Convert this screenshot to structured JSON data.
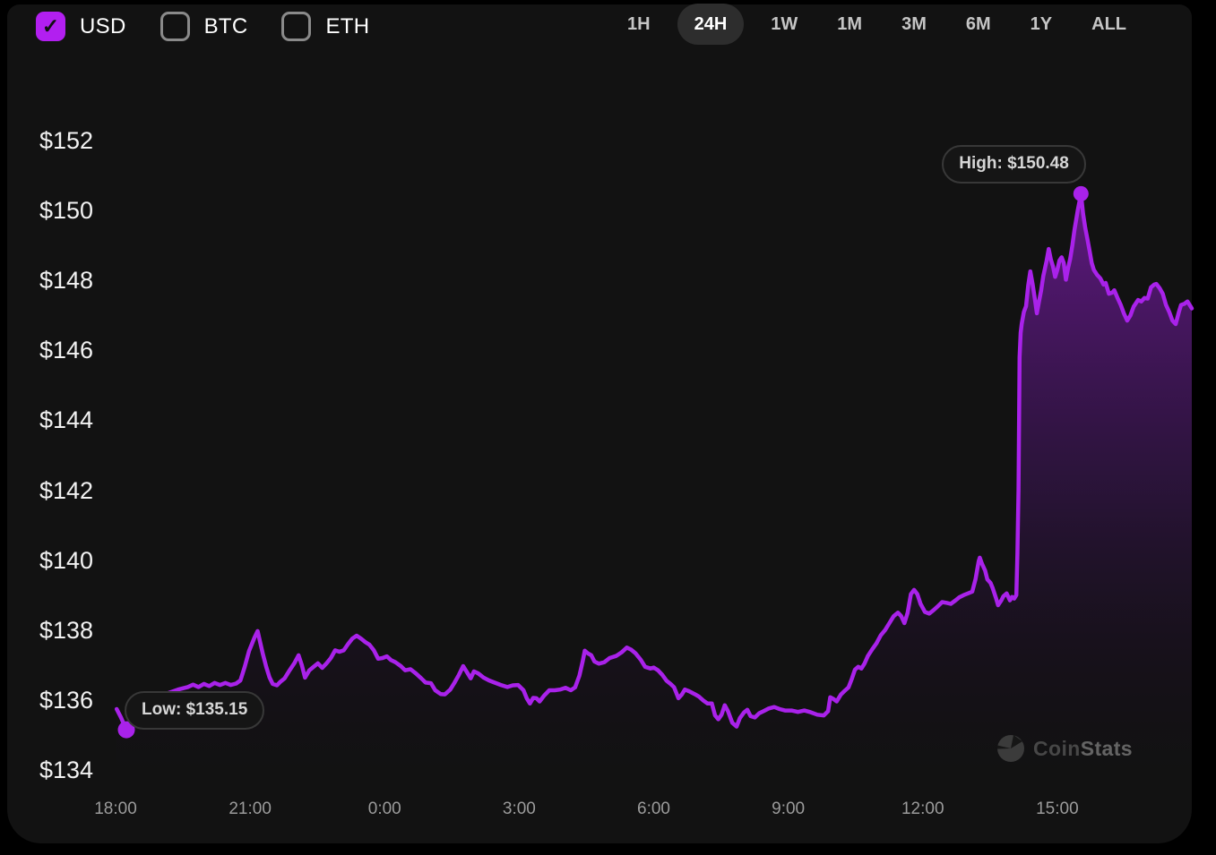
{
  "header": {
    "check_glyph": "✓",
    "currency_toggles": [
      {
        "label": "USD",
        "checked": true
      },
      {
        "label": "BTC",
        "checked": false
      },
      {
        "label": "ETH",
        "checked": false
      }
    ],
    "range_buttons": [
      {
        "label": "1H",
        "active": false
      },
      {
        "label": "24H",
        "active": true
      },
      {
        "label": "1W",
        "active": false
      },
      {
        "label": "1M",
        "active": false
      },
      {
        "label": "3M",
        "active": false
      },
      {
        "label": "6M",
        "active": false
      },
      {
        "label": "1Y",
        "active": false
      },
      {
        "label": "ALL",
        "active": false
      }
    ]
  },
  "tooltips": {
    "high": "High: $150.48",
    "low": "Low: $135.15"
  },
  "watermark": {
    "coin": "Coin",
    "stats": "Stats"
  },
  "colors": {
    "accent": "#a922ea",
    "panel_bg": "#121212",
    "outer_bg": "#000000",
    "active_pill_bg": "#2d2d2d",
    "y_label": "#f2f2f2",
    "x_label": "#9b9b9b",
    "tooltip_bg": "#151515",
    "tooltip_border": "#383838",
    "tooltip_text": "#d6d6d6",
    "checkbox_checked_bg": "#b21ff0",
    "checkbox_unchecked_border": "#8a8a8a"
  },
  "chart_data": {
    "type": "area",
    "title": "",
    "xlabel": "",
    "ylabel": "",
    "x_ticks": [
      "18:00",
      "21:00",
      "0:00",
      "3:00",
      "6:00",
      "9:00",
      "12:00",
      "15:00"
    ],
    "y_ticks": [
      {
        "label": "$152",
        "value": 152
      },
      {
        "label": "$150",
        "value": 150
      },
      {
        "label": "$148",
        "value": 148
      },
      {
        "label": "$146",
        "value": 146
      },
      {
        "label": "$144",
        "value": 144
      },
      {
        "label": "$142",
        "value": 142
      },
      {
        "label": "$140",
        "value": 140
      },
      {
        "label": "$138",
        "value": 138
      },
      {
        "label": "$136",
        "value": 136
      },
      {
        "label": "$134",
        "value": 134
      }
    ],
    "ylim": [
      134,
      152
    ],
    "x_range_hours": 24,
    "grid": false,
    "legend": false,
    "high": {
      "frac": 0.897,
      "price": 150.48
    },
    "low": {
      "frac": 0.01,
      "price": 135.15
    },
    "points": [
      [
        0.001,
        135.74
      ],
      [
        0.005,
        135.5
      ],
      [
        0.01,
        135.15
      ],
      [
        0.014,
        135.4
      ],
      [
        0.018,
        135.67
      ],
      [
        0.024,
        135.9
      ],
      [
        0.031,
        136.02
      ],
      [
        0.04,
        136.12
      ],
      [
        0.049,
        136.2
      ],
      [
        0.058,
        136.3
      ],
      [
        0.067,
        136.37
      ],
      [
        0.072,
        136.44
      ],
      [
        0.077,
        136.37
      ],
      [
        0.082,
        136.46
      ],
      [
        0.087,
        136.4
      ],
      [
        0.092,
        136.49
      ],
      [
        0.097,
        136.43
      ],
      [
        0.102,
        136.49
      ],
      [
        0.107,
        136.43
      ],
      [
        0.112,
        136.47
      ],
      [
        0.116,
        136.56
      ],
      [
        0.12,
        136.95
      ],
      [
        0.124,
        137.4
      ],
      [
        0.129,
        137.78
      ],
      [
        0.132,
        137.97
      ],
      [
        0.134,
        137.7
      ],
      [
        0.137,
        137.3
      ],
      [
        0.14,
        136.95
      ],
      [
        0.143,
        136.65
      ],
      [
        0.146,
        136.46
      ],
      [
        0.15,
        136.42
      ],
      [
        0.153,
        136.52
      ],
      [
        0.157,
        136.62
      ],
      [
        0.161,
        136.82
      ],
      [
        0.166,
        137.05
      ],
      [
        0.17,
        137.28
      ],
      [
        0.173,
        137.0
      ],
      [
        0.176,
        136.64
      ],
      [
        0.18,
        136.85
      ],
      [
        0.184,
        136.95
      ],
      [
        0.188,
        137.05
      ],
      [
        0.192,
        136.92
      ],
      [
        0.196,
        137.05
      ],
      [
        0.2,
        137.2
      ],
      [
        0.204,
        137.42
      ],
      [
        0.208,
        137.38
      ],
      [
        0.212,
        137.42
      ],
      [
        0.216,
        137.6
      ],
      [
        0.22,
        137.76
      ],
      [
        0.224,
        137.84
      ],
      [
        0.228,
        137.76
      ],
      [
        0.232,
        137.66
      ],
      [
        0.236,
        137.58
      ],
      [
        0.24,
        137.42
      ],
      [
        0.244,
        137.18
      ],
      [
        0.248,
        137.2
      ],
      [
        0.252,
        137.25
      ],
      [
        0.256,
        137.14
      ],
      [
        0.26,
        137.08
      ],
      [
        0.265,
        136.97
      ],
      [
        0.269,
        136.85
      ],
      [
        0.274,
        136.88
      ],
      [
        0.279,
        136.76
      ],
      [
        0.284,
        136.62
      ],
      [
        0.288,
        136.5
      ],
      [
        0.293,
        136.48
      ],
      [
        0.297,
        136.28
      ],
      [
        0.302,
        136.17
      ],
      [
        0.306,
        136.16
      ],
      [
        0.311,
        136.3
      ],
      [
        0.315,
        136.5
      ],
      [
        0.319,
        136.72
      ],
      [
        0.323,
        136.97
      ],
      [
        0.327,
        136.77
      ],
      [
        0.33,
        136.62
      ],
      [
        0.333,
        136.82
      ],
      [
        0.337,
        136.76
      ],
      [
        0.342,
        136.64
      ],
      [
        0.347,
        136.56
      ],
      [
        0.352,
        136.5
      ],
      [
        0.358,
        136.43
      ],
      [
        0.364,
        136.37
      ],
      [
        0.369,
        136.42
      ],
      [
        0.374,
        136.43
      ],
      [
        0.379,
        136.28
      ],
      [
        0.382,
        136.05
      ],
      [
        0.385,
        135.9
      ],
      [
        0.388,
        136.06
      ],
      [
        0.391,
        136.05
      ],
      [
        0.394,
        135.96
      ],
      [
        0.398,
        136.12
      ],
      [
        0.403,
        136.28
      ],
      [
        0.408,
        136.28
      ],
      [
        0.413,
        136.3
      ],
      [
        0.418,
        136.35
      ],
      [
        0.423,
        136.28
      ],
      [
        0.427,
        136.36
      ],
      [
        0.431,
        136.7
      ],
      [
        0.434,
        137.1
      ],
      [
        0.436,
        137.41
      ],
      [
        0.439,
        137.33
      ],
      [
        0.442,
        137.28
      ],
      [
        0.445,
        137.1
      ],
      [
        0.449,
        137.04
      ],
      [
        0.454,
        137.08
      ],
      [
        0.459,
        137.2
      ],
      [
        0.465,
        137.26
      ],
      [
        0.47,
        137.36
      ],
      [
        0.475,
        137.5
      ],
      [
        0.479,
        137.44
      ],
      [
        0.483,
        137.34
      ],
      [
        0.488,
        137.15
      ],
      [
        0.492,
        136.95
      ],
      [
        0.497,
        136.9
      ],
      [
        0.5,
        136.93
      ],
      [
        0.504,
        136.85
      ],
      [
        0.508,
        136.72
      ],
      [
        0.512,
        136.55
      ],
      [
        0.516,
        136.45
      ],
      [
        0.519,
        136.36
      ],
      [
        0.523,
        136.05
      ],
      [
        0.526,
        136.15
      ],
      [
        0.529,
        136.3
      ],
      [
        0.533,
        136.25
      ],
      [
        0.538,
        136.17
      ],
      [
        0.542,
        136.1
      ],
      [
        0.546,
        135.99
      ],
      [
        0.55,
        135.9
      ],
      [
        0.554,
        135.9
      ],
      [
        0.557,
        135.56
      ],
      [
        0.56,
        135.45
      ],
      [
        0.563,
        135.58
      ],
      [
        0.566,
        135.85
      ],
      [
        0.569,
        135.68
      ],
      [
        0.573,
        135.35
      ],
      [
        0.577,
        135.24
      ],
      [
        0.58,
        135.48
      ],
      [
        0.584,
        135.65
      ],
      [
        0.587,
        135.72
      ],
      [
        0.59,
        135.54
      ],
      [
        0.594,
        135.5
      ],
      [
        0.598,
        135.62
      ],
      [
        0.602,
        135.68
      ],
      [
        0.607,
        135.76
      ],
      [
        0.612,
        135.8
      ],
      [
        0.617,
        135.74
      ],
      [
        0.622,
        135.7
      ],
      [
        0.628,
        135.7
      ],
      [
        0.634,
        135.66
      ],
      [
        0.64,
        135.7
      ],
      [
        0.646,
        135.65
      ],
      [
        0.652,
        135.58
      ],
      [
        0.658,
        135.56
      ],
      [
        0.662,
        135.68
      ],
      [
        0.664,
        136.08
      ],
      [
        0.667,
        136.03
      ],
      [
        0.67,
        135.96
      ],
      [
        0.674,
        136.16
      ],
      [
        0.678,
        136.28
      ],
      [
        0.681,
        136.36
      ],
      [
        0.684,
        136.6
      ],
      [
        0.687,
        136.87
      ],
      [
        0.69,
        136.95
      ],
      [
        0.693,
        136.9
      ],
      [
        0.696,
        137.05
      ],
      [
        0.699,
        137.26
      ],
      [
        0.703,
        137.45
      ],
      [
        0.707,
        137.62
      ],
      [
        0.711,
        137.85
      ],
      [
        0.715,
        138.0
      ],
      [
        0.719,
        138.2
      ],
      [
        0.723,
        138.4
      ],
      [
        0.727,
        138.5
      ],
      [
        0.73,
        138.4
      ],
      [
        0.733,
        138.2
      ],
      [
        0.736,
        138.5
      ],
      [
        0.739,
        139.03
      ],
      [
        0.742,
        139.15
      ],
      [
        0.745,
        139.03
      ],
      [
        0.748,
        138.75
      ],
      [
        0.752,
        138.52
      ],
      [
        0.756,
        138.47
      ],
      [
        0.76,
        138.57
      ],
      [
        0.764,
        138.68
      ],
      [
        0.768,
        138.8
      ],
      [
        0.772,
        138.78
      ],
      [
        0.776,
        138.75
      ],
      [
        0.78,
        138.84
      ],
      [
        0.784,
        138.94
      ],
      [
        0.788,
        139.0
      ],
      [
        0.792,
        139.05
      ],
      [
        0.796,
        139.1
      ],
      [
        0.799,
        139.45
      ],
      [
        0.802,
        139.97
      ],
      [
        0.803,
        140.07
      ],
      [
        0.805,
        139.9
      ],
      [
        0.808,
        139.7
      ],
      [
        0.81,
        139.45
      ],
      [
        0.813,
        139.35
      ],
      [
        0.815,
        139.2
      ],
      [
        0.818,
        138.92
      ],
      [
        0.82,
        138.71
      ],
      [
        0.823,
        138.85
      ],
      [
        0.825,
        138.97
      ],
      [
        0.828,
        139.05
      ],
      [
        0.831,
        138.85
      ],
      [
        0.833,
        138.95
      ],
      [
        0.835,
        138.9
      ],
      [
        0.837,
        139.0
      ],
      [
        0.838,
        140.2
      ],
      [
        0.839,
        142.0
      ],
      [
        0.84,
        145.8
      ],
      [
        0.841,
        146.5
      ],
      [
        0.842,
        146.76
      ],
      [
        0.844,
        147.1
      ],
      [
        0.846,
        147.26
      ],
      [
        0.848,
        147.85
      ],
      [
        0.85,
        148.26
      ],
      [
        0.852,
        147.9
      ],
      [
        0.854,
        147.5
      ],
      [
        0.856,
        147.06
      ],
      [
        0.858,
        147.4
      ],
      [
        0.86,
        147.72
      ],
      [
        0.862,
        148.13
      ],
      [
        0.865,
        148.55
      ],
      [
        0.867,
        148.9
      ],
      [
        0.869,
        148.6
      ],
      [
        0.871,
        148.4
      ],
      [
        0.873,
        148.1
      ],
      [
        0.875,
        148.3
      ],
      [
        0.877,
        148.57
      ],
      [
        0.879,
        148.66
      ],
      [
        0.881,
        148.5
      ],
      [
        0.883,
        148.02
      ],
      [
        0.885,
        148.35
      ],
      [
        0.887,
        148.62
      ],
      [
        0.889,
        149.0
      ],
      [
        0.891,
        149.45
      ],
      [
        0.894,
        150.0
      ],
      [
        0.897,
        150.48
      ],
      [
        0.899,
        149.9
      ],
      [
        0.901,
        149.5
      ],
      [
        0.903,
        149.18
      ],
      [
        0.905,
        148.85
      ],
      [
        0.907,
        148.5
      ],
      [
        0.909,
        148.3
      ],
      [
        0.912,
        148.16
      ],
      [
        0.915,
        148.06
      ],
      [
        0.918,
        147.88
      ],
      [
        0.92,
        147.93
      ],
      [
        0.923,
        147.62
      ],
      [
        0.926,
        147.65
      ],
      [
        0.928,
        147.72
      ],
      [
        0.931,
        147.5
      ],
      [
        0.934,
        147.3
      ],
      [
        0.937,
        147.05
      ],
      [
        0.94,
        146.85
      ],
      [
        0.943,
        147.0
      ],
      [
        0.946,
        147.25
      ],
      [
        0.95,
        147.44
      ],
      [
        0.953,
        147.4
      ],
      [
        0.956,
        147.5
      ],
      [
        0.959,
        147.48
      ],
      [
        0.962,
        147.8
      ],
      [
        0.965,
        147.88
      ],
      [
        0.967,
        147.9
      ],
      [
        0.97,
        147.78
      ],
      [
        0.973,
        147.62
      ],
      [
        0.976,
        147.3
      ],
      [
        0.979,
        147.1
      ],
      [
        0.982,
        146.85
      ],
      [
        0.985,
        146.75
      ],
      [
        0.988,
        147.1
      ],
      [
        0.99,
        147.3
      ],
      [
        0.993,
        147.33
      ],
      [
        0.996,
        147.4
      ],
      [
        1.0,
        147.2
      ]
    ]
  }
}
